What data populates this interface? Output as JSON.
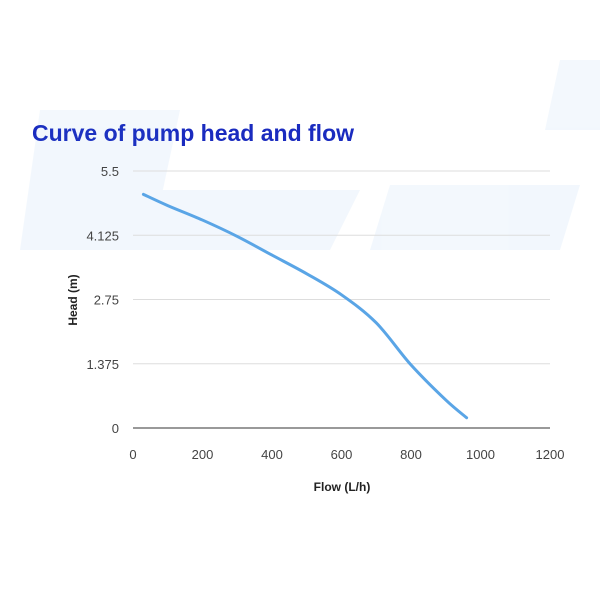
{
  "chart_data": {
    "type": "line",
    "title": "Curve of pump head and flow",
    "xlabel": "Flow (L/h)",
    "ylabel": "Head (m)",
    "xlim": [
      0,
      1200
    ],
    "ylim": [
      0,
      5.5
    ],
    "xticks": [
      0,
      200,
      400,
      600,
      800,
      1000,
      1200
    ],
    "yticks": [
      0,
      1.375,
      2.75,
      4.125,
      5.5
    ],
    "grid": "horizontal",
    "series": [
      {
        "name": "Head",
        "color": "#5aa5e6",
        "x": [
          30,
          100,
          200,
          300,
          400,
          500,
          600,
          700,
          800,
          900,
          960
        ],
        "y": [
          5.0,
          4.76,
          4.45,
          4.1,
          3.7,
          3.3,
          2.85,
          2.25,
          1.35,
          0.6,
          0.22
        ]
      }
    ]
  }
}
